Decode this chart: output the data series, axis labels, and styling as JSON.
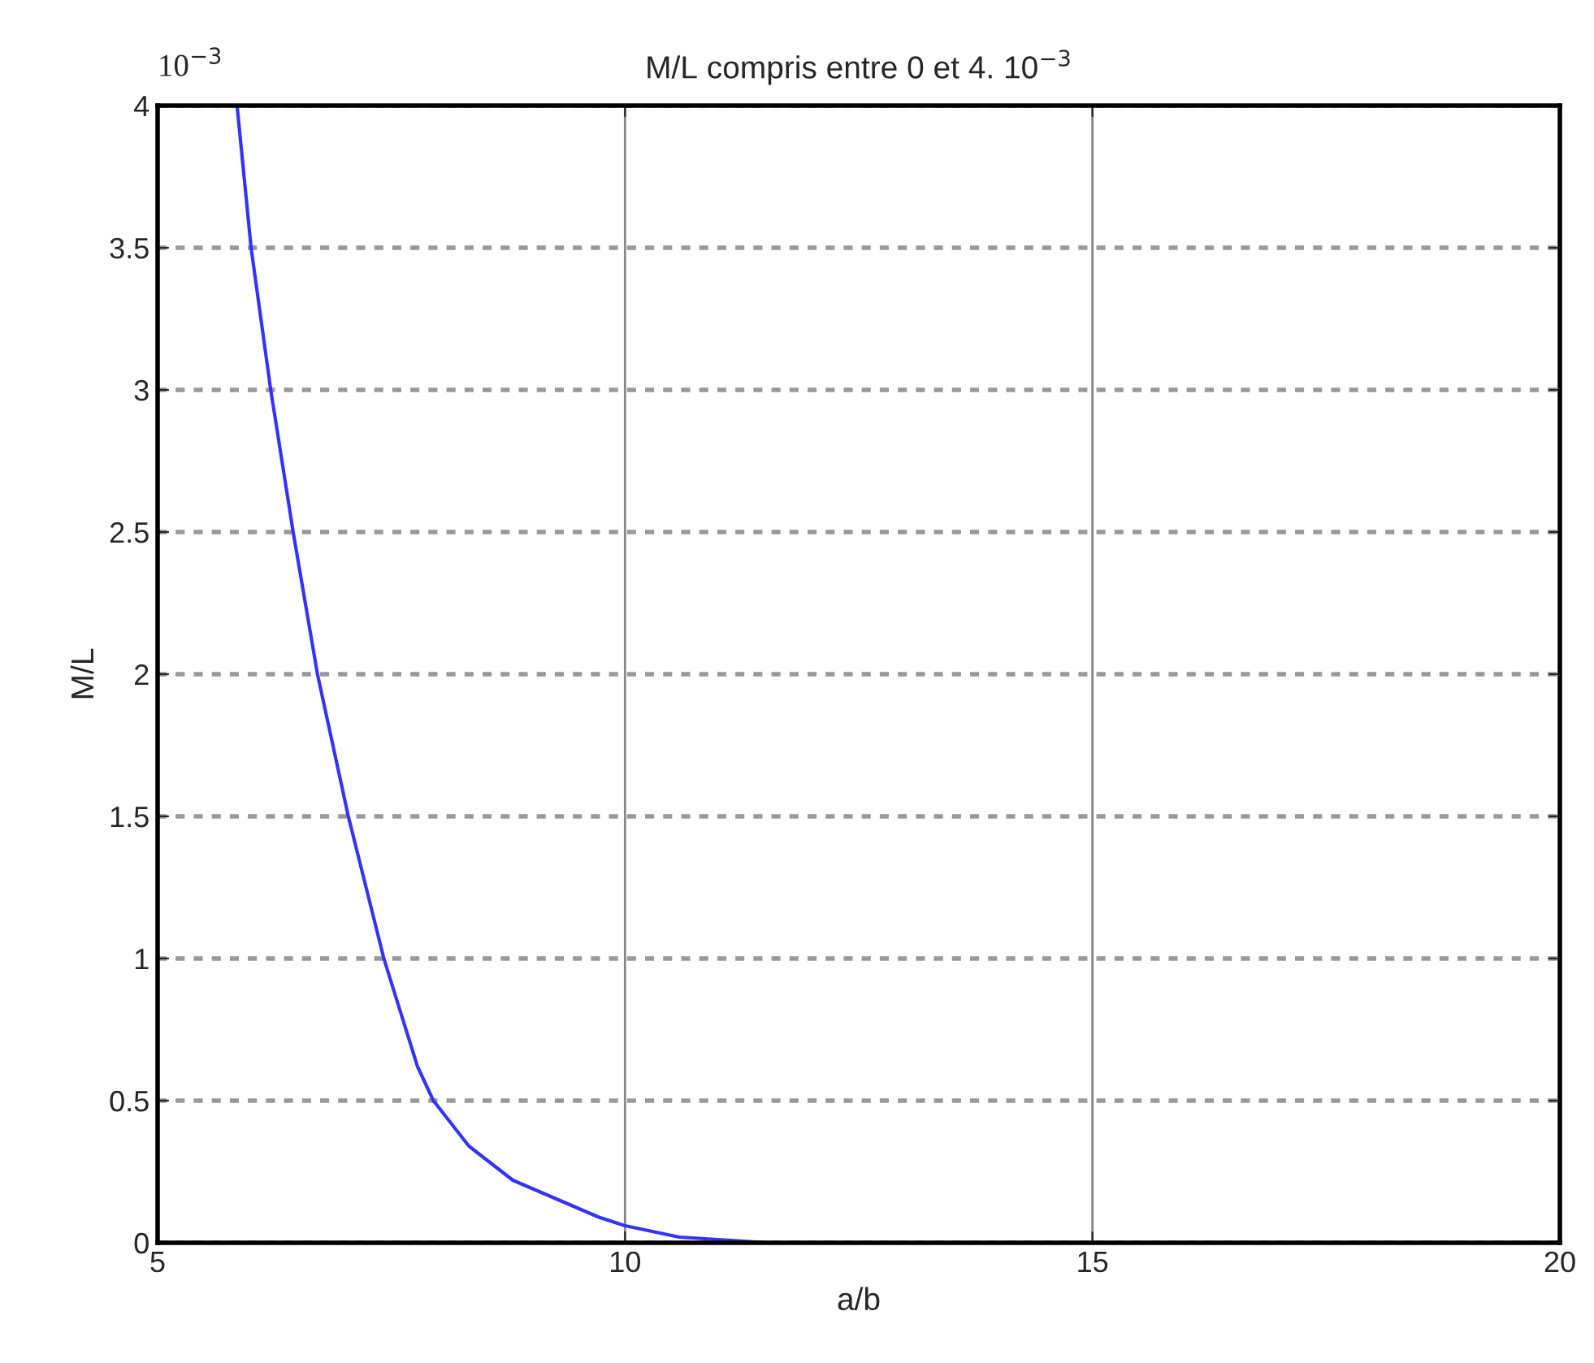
{
  "chart_data": {
    "type": "line",
    "title": "M/L compris entre 0 et 4. 10$^{−3}$",
    "xlabel": "a/b",
    "ylabel": "M/L",
    "annotations": [
      "10$^{−3}$"
    ],
    "series": [
      {
        "color": "#3333ff",
        "x": [
          5.85,
          6.0,
          6.21,
          6.45,
          6.71,
          7.04,
          7.42,
          7.78,
          7.95,
          8.33,
          8.8,
          9.72,
          10.0,
          10.58,
          11.53
        ],
        "values": [
          4.0,
          3.5,
          3.0,
          2.5,
          2.0,
          1.5,
          1.0,
          0.62,
          0.5,
          0.34,
          0.22,
          0.09,
          0.06,
          0.02,
          0.0
        ]
      }
    ],
    "xlim": [
      5,
      20
    ],
    "xticks": [
      5,
      10,
      15,
      20
    ],
    "ylim": [
      0,
      4
    ],
    "yticks": [
      0,
      0.5,
      1,
      1.5,
      2,
      2.5,
      3,
      3.5,
      4
    ],
    "grid": true
  }
}
